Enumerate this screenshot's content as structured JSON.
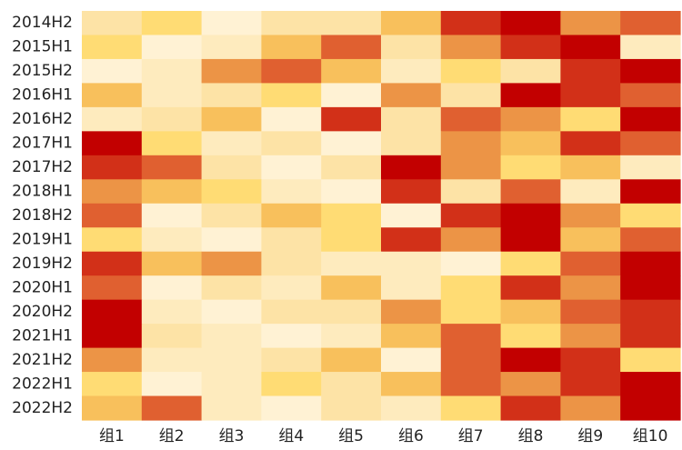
{
  "chart_data": {
    "type": "heatmap",
    "title": "",
    "xlabel": "",
    "ylabel": "",
    "x_categories": [
      "组1",
      "组2",
      "组3",
      "组4",
      "组5",
      "组6",
      "组7",
      "组8",
      "组9",
      "组10"
    ],
    "y_categories": [
      "2014H2",
      "2015H1",
      "2015H2",
      "2016H1",
      "2016H2",
      "2017H1",
      "2017H2",
      "2018H1",
      "2018H2",
      "2019H1",
      "2019H2",
      "2020H1",
      "2020H2",
      "2021H1",
      "2021H2",
      "2022H1",
      "2022H2"
    ],
    "value_range": [
      0,
      7
    ],
    "colorscale": [
      "#FFF2D4",
      "#FEEBBE",
      "#FDE3A6",
      "#FFDC74",
      "#F8C05C",
      "#EC9446",
      "#E06030",
      "#D23018",
      "#C20000"
    ],
    "values": [
      [
        2,
        3,
        0,
        2,
        2,
        4,
        7,
        8,
        5,
        6
      ],
      [
        3,
        0,
        1,
        4,
        6,
        2,
        5,
        7,
        8,
        1
      ],
      [
        0,
        1,
        5,
        6,
        4,
        1,
        3,
        2,
        7,
        8
      ],
      [
        4,
        1,
        2,
        3,
        0,
        5,
        2,
        8,
        7,
        6
      ],
      [
        1,
        2,
        4,
        0,
        7,
        2,
        6,
        5,
        3,
        8
      ],
      [
        8,
        3,
        1,
        2,
        0,
        2,
        5,
        4,
        7,
        6
      ],
      [
        7,
        6,
        2,
        0,
        2,
        8,
        5,
        3,
        4,
        1
      ],
      [
        5,
        4,
        3,
        1,
        0,
        7,
        2,
        6,
        1,
        8
      ],
      [
        6,
        0,
        2,
        4,
        3,
        0,
        7,
        8,
        5,
        3
      ],
      [
        3,
        1,
        0,
        2,
        3,
        7,
        5,
        8,
        4,
        6
      ],
      [
        7,
        4,
        5,
        2,
        1,
        1,
        0,
        3,
        6,
        8
      ],
      [
        6,
        0,
        2,
        1,
        4,
        1,
        3,
        7,
        5,
        8
      ],
      [
        8,
        1,
        0,
        2,
        2,
        5,
        3,
        4,
        6,
        7
      ],
      [
        8,
        2,
        1,
        0,
        1,
        4,
        6,
        3,
        5,
        7
      ],
      [
        5,
        1,
        1,
        2,
        4,
        0,
        6,
        8,
        7,
        3
      ],
      [
        3,
        0,
        1,
        3,
        2,
        4,
        6,
        5,
        7,
        8
      ],
      [
        4,
        6,
        1,
        0,
        2,
        1,
        3,
        7,
        5,
        8
      ]
    ]
  }
}
